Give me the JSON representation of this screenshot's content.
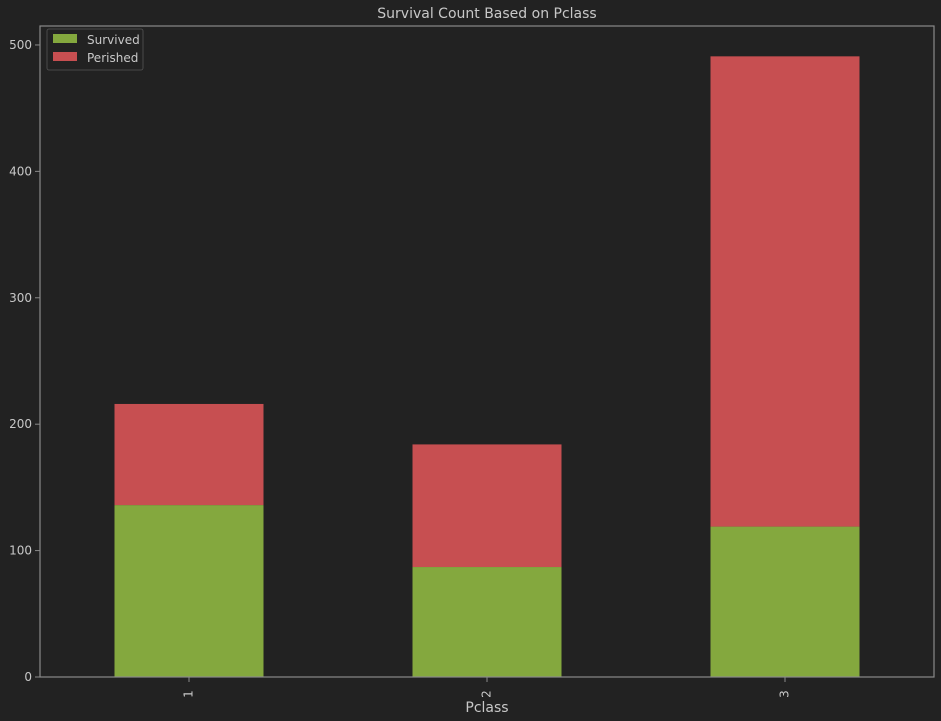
{
  "chart_data": {
    "type": "bar",
    "stacked": true,
    "title": "Survival Count Based on Pclass",
    "xlabel": "Pclass",
    "ylabel": "",
    "categories": [
      "1",
      "2",
      "3"
    ],
    "series": [
      {
        "name": "Survived",
        "values": [
          136,
          87,
          119
        ]
      },
      {
        "name": "Perished",
        "values": [
          80,
          97,
          372
        ]
      }
    ],
    "ylim": [
      0,
      515
    ],
    "yticks": [
      0,
      100,
      200,
      300,
      400,
      500
    ],
    "legend_position": "top-left",
    "grid": false
  },
  "colors": {
    "background": "#222222",
    "frame": "#8a8a8a",
    "text": "#c8c8c8",
    "survived": "#84a83e",
    "perished": "#c74f51"
  }
}
